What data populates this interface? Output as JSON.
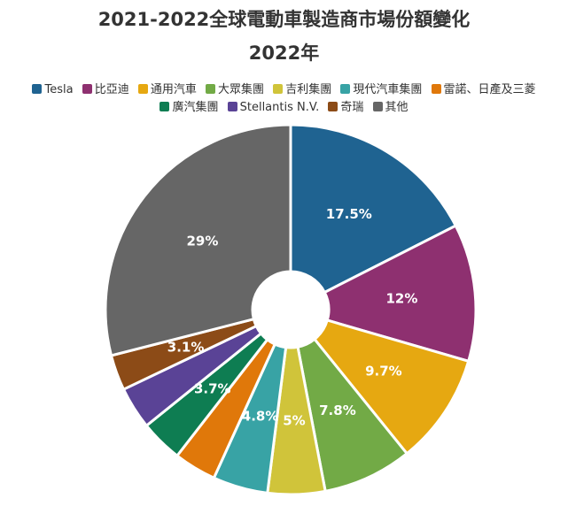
{
  "chart_data": {
    "type": "pie",
    "title": "2021-2022全球電動車製造商市場份額變化",
    "subtitle": "2022年",
    "series": [
      {
        "name": "Tesla",
        "value": 17.5,
        "label": "17.5%",
        "color": "#1f6391"
      },
      {
        "name": "比亞迪",
        "value": 12,
        "label": "12%",
        "color": "#8e3070"
      },
      {
        "name": "通用汽車",
        "value": 9.7,
        "label": "9.7%",
        "color": "#e6a811"
      },
      {
        "name": "大眾集團",
        "value": 7.8,
        "label": "7.8%",
        "color": "#72aa46"
      },
      {
        "name": "吉利集團",
        "value": 5,
        "label": "5%",
        "color": "#d0c43a"
      },
      {
        "name": "現代汽車集團",
        "value": 4.8,
        "label": "4.8%",
        "color": "#38a3a5"
      },
      {
        "name": "雷諾、日產及三菱",
        "value": 3.7,
        "label": "",
        "color": "#e0780a"
      },
      {
        "name": "廣汽集團",
        "value": 3.7,
        "label": "3.7%",
        "color": "#0e7d52"
      },
      {
        "name": "Stellantis N.V.",
        "value": 3.7,
        "label": "",
        "color": "#5a4396"
      },
      {
        "name": "奇瑞",
        "value": 3.1,
        "label": "3.1%",
        "color": "#8c4b17"
      },
      {
        "name": "其他",
        "value": 29,
        "label": "29%",
        "color": "#666666"
      }
    ],
    "legend_position": "top"
  }
}
